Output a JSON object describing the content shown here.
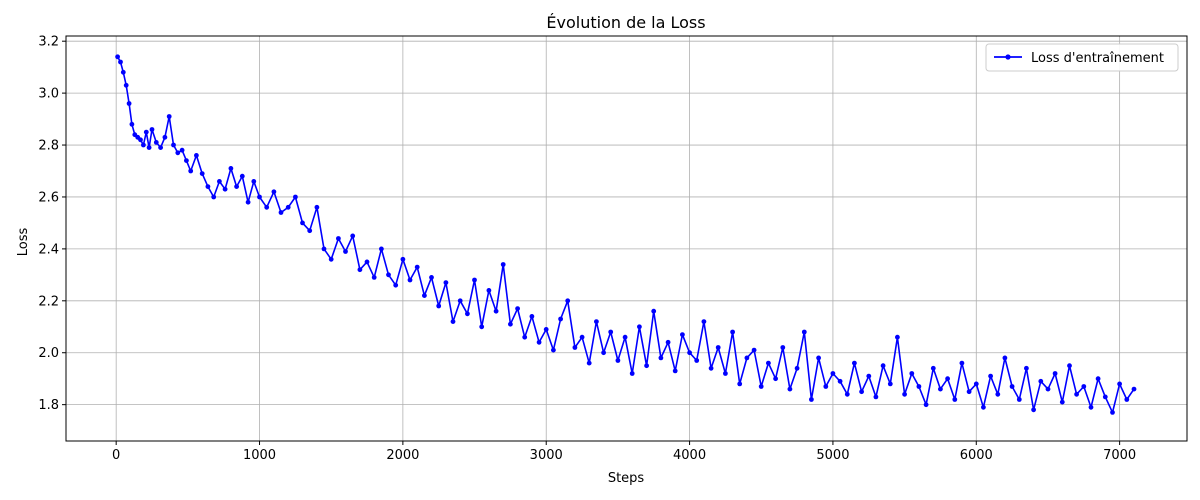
{
  "chart_data": {
    "type": "line",
    "title": "Évolution de la Loss",
    "xlabel": "Steps",
    "ylabel": "Loss",
    "xlim": [
      -350,
      7470
    ],
    "ylim": [
      1.66,
      3.22
    ],
    "x_ticks": [
      0,
      1000,
      2000,
      3000,
      4000,
      5000,
      6000,
      7000
    ],
    "y_ticks": [
      1.8,
      2.0,
      2.2,
      2.4,
      2.6,
      2.8,
      3.0,
      3.2
    ],
    "grid": true,
    "legend_position": "top-right",
    "series": [
      {
        "name": "Loss d'entraînement",
        "color": "#0000ff",
        "marker": "circle",
        "x": [
          10,
          30,
          50,
          70,
          90,
          110,
          130,
          150,
          170,
          190,
          210,
          230,
          250,
          280,
          310,
          340,
          370,
          400,
          430,
          460,
          490,
          520,
          560,
          600,
          640,
          680,
          720,
          760,
          800,
          840,
          880,
          920,
          960,
          1000,
          1050,
          1100,
          1150,
          1200,
          1250,
          1300,
          1350,
          1400,
          1450,
          1500,
          1550,
          1600,
          1650,
          1700,
          1750,
          1800,
          1850,
          1900,
          1950,
          2000,
          2050,
          2100,
          2150,
          2200,
          2250,
          2300,
          2350,
          2400,
          2450,
          2500,
          2550,
          2600,
          2650,
          2700,
          2750,
          2800,
          2850,
          2900,
          2950,
          3000,
          3050,
          3100,
          3150,
          3200,
          3250,
          3300,
          3350,
          3400,
          3450,
          3500,
          3550,
          3600,
          3650,
          3700,
          3750,
          3800,
          3850,
          3900,
          3950,
          4000,
          4050,
          4100,
          4150,
          4200,
          4250,
          4300,
          4350,
          4400,
          4450,
          4500,
          4550,
          4600,
          4650,
          4700,
          4750,
          4800,
          4850,
          4900,
          4950,
          5000,
          5050,
          5100,
          5150,
          5200,
          5250,
          5300,
          5350,
          5400,
          5450,
          5500,
          5550,
          5600,
          5650,
          5700,
          5750,
          5800,
          5850,
          5900,
          5950,
          6000,
          6050,
          6100,
          6150,
          6200,
          6250,
          6300,
          6350,
          6400,
          6450,
          6500,
          6550,
          6600,
          6650,
          6700,
          6750,
          6800,
          6850,
          6900,
          6950,
          7000,
          7050,
          7100
        ],
        "y": [
          3.14,
          3.12,
          3.08,
          3.03,
          2.96,
          2.88,
          2.84,
          2.83,
          2.82,
          2.8,
          2.85,
          2.79,
          2.86,
          2.81,
          2.79,
          2.83,
          2.91,
          2.8,
          2.77,
          2.78,
          2.74,
          2.7,
          2.76,
          2.69,
          2.64,
          2.6,
          2.66,
          2.63,
          2.71,
          2.64,
          2.68,
          2.58,
          2.66,
          2.6,
          2.56,
          2.62,
          2.54,
          2.56,
          2.6,
          2.5,
          2.47,
          2.56,
          2.4,
          2.36,
          2.44,
          2.39,
          2.45,
          2.32,
          2.35,
          2.29,
          2.4,
          2.3,
          2.26,
          2.36,
          2.28,
          2.33,
          2.22,
          2.29,
          2.18,
          2.27,
          2.12,
          2.2,
          2.15,
          2.28,
          2.1,
          2.24,
          2.16,
          2.34,
          2.11,
          2.17,
          2.06,
          2.14,
          2.04,
          2.09,
          2.01,
          2.13,
          2.2,
          2.02,
          2.06,
          1.96,
          2.12,
          2.0,
          2.08,
          1.97,
          2.06,
          1.92,
          2.1,
          1.95,
          2.16,
          1.98,
          2.04,
          1.93,
          2.07,
          2.0,
          1.97,
          2.12,
          1.94,
          2.02,
          1.92,
          2.08,
          1.88,
          1.98,
          2.01,
          1.87,
          1.96,
          1.9,
          2.02,
          1.86,
          1.94,
          2.08,
          1.82,
          1.98,
          1.87,
          1.92,
          1.89,
          1.84,
          1.96,
          1.85,
          1.91,
          1.83,
          1.95,
          1.88,
          2.06,
          1.84,
          1.92,
          1.87,
          1.8,
          1.94,
          1.86,
          1.9,
          1.82,
          1.96,
          1.85,
          1.88,
          1.79,
          1.91,
          1.84,
          1.98,
          1.87,
          1.82,
          1.94,
          1.78,
          1.89,
          1.86,
          1.92,
          1.81,
          1.95,
          1.84,
          1.87,
          1.79,
          1.9,
          1.83,
          1.77,
          1.88,
          1.82,
          1.86
        ]
      }
    ]
  }
}
